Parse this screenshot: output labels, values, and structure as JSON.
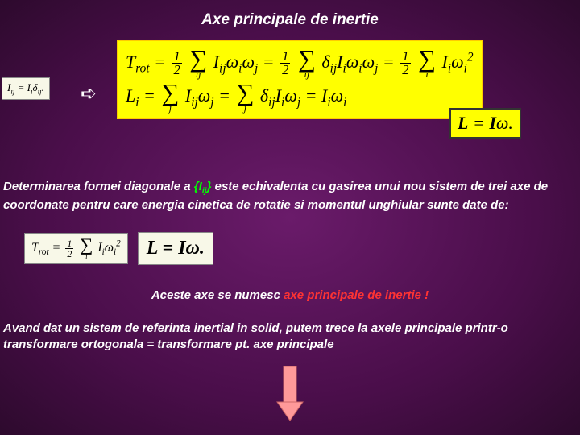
{
  "title": "Axe principale de inertie",
  "formula_left": "I<sub>ij</sub> = I<sub>i</sub>δ<sub>ij</sub>.",
  "formula_main_line1": "T<sub>rot</sub> = <span class='frac'><span class='num'>1</span><span class='den'>2</span></span> <span class='sum'><span class='sigma'>∑</span><span class='idx'>ij</span></span> I<sub>ij</sub>ω<sub>i</sub>ω<sub>j</sub> = <span class='frac'><span class='num'>1</span><span class='den'>2</span></span> <span class='sum'><span class='sigma'>∑</span><span class='idx'>ij</span></span> δ<sub>ij</sub>I<sub>i</sub>ω<sub>i</sub>ω<sub>j</sub> = <span class='frac'><span class='num'>1</span><span class='den'>2</span></span> <span class='sum'><span class='sigma'>∑</span><span class='idx'>i</span></span> I<sub>i</sub>ω<sub>i</sub><sup>2</sup>",
  "formula_main_line2": "L<sub>i</sub> = <span class='sum'><span class='sigma'>∑</span><span class='idx'>j</span></span> I<sub>ij</sub>ω<sub>j</sub> = <span class='sum'><span class='sigma'>∑</span><span class='idx'>j</span></span> δ<sub>ij</sub>I<sub>i</sub>ω<sub>j</sub> = I<sub>i</sub>ω<sub>i</sub>",
  "formula_box_right": "<b>L</b> = <b>I</b>ω.",
  "para1_pre": "Determinarea formei diagonale a ",
  "para1_hl": "{I<sub>ij</sub>}",
  "para1_post": " este echivalenta cu gasirea unui nou sistem de trei axe de coordonate pentru care energia cinetica de rotatie si momentul unghiular sunte date de:",
  "formula_trot": "T<sub>rot</sub> = <span class='frac'><span class='num'>1</span><span class='den'>2</span></span> <span class='sum'><span class='sigma'>∑</span><span class='idx'>i</span></span> I<sub>i</sub>ω<sub>i</sub><sup>2</sup>",
  "formula_L_eq": "L = Iω.",
  "para2_pre": "Aceste axe se numesc ",
  "para2_hl": "axe principale de inertie !",
  "para3": "Avand dat un sistem de referinta inertial in solid, putem trece la axele principale printr-o transformare ortogonala = transformare pt. axe principale",
  "colors": {
    "bg_center": "#6a1b6a",
    "bg_edge": "#2d0a2d",
    "yellow": "#ffff00",
    "white": "#ffffff",
    "green": "#00ff00",
    "red": "#ff3333"
  }
}
